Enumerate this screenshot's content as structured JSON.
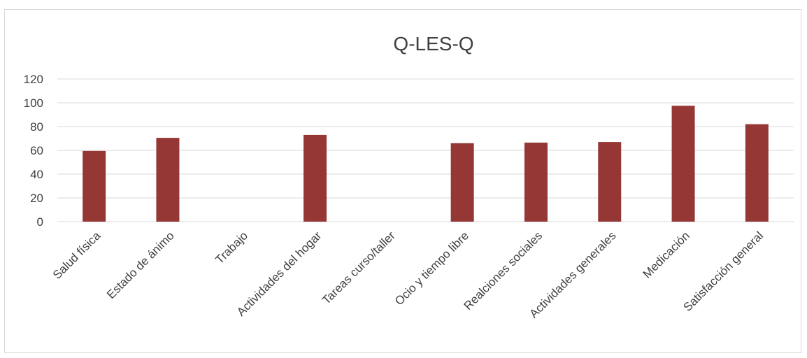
{
  "chart_data": {
    "type": "bar",
    "title": "Q-LES-Q",
    "categories": [
      "Salud física",
      "Estado de ánimo",
      "Trabajo",
      "Actividades del hogar",
      "Tareas curso/taller",
      "Ocio y tiempo libre",
      "Realciones sociales",
      "Actividades generales",
      "Medicación",
      "Satisfacción general"
    ],
    "values": [
      59.5,
      70.5,
      null,
      73,
      null,
      66,
      66.5,
      67,
      97.5,
      82
    ],
    "yticks": [
      "0",
      "20",
      "40",
      "60",
      "80",
      "100",
      "120"
    ],
    "ylim": [
      0,
      120
    ],
    "grid": true,
    "legend": "none",
    "bar_color": "#953735",
    "grid_color": "#d9d9d9",
    "text_color": "#404040"
  }
}
